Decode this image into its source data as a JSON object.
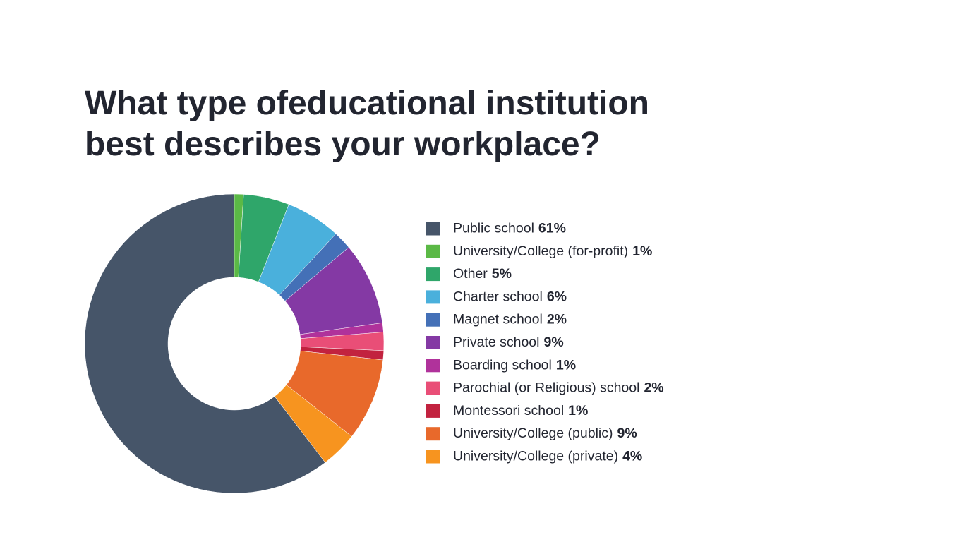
{
  "chart_data": {
    "type": "donut",
    "title": [
      "What type ofeducational institution",
      "best describes your workplace?"
    ],
    "categories": [
      "Public school",
      "University/College (for-profit)",
      "Other",
      "Charter school",
      "Magnet school",
      "Private school",
      "Boarding school",
      "Parochial (or Religious) school",
      "Montessori school",
      "University/College (public)",
      "University/College (private)"
    ],
    "values": [
      61,
      1,
      5,
      6,
      2,
      9,
      1,
      2,
      1,
      9,
      4
    ],
    "value_labels": [
      "61%",
      "1%",
      "5%",
      "6%",
      "2%",
      "9%",
      "1%",
      "2%",
      "1%",
      "9%",
      "4%"
    ],
    "colors": [
      "#465569",
      "#5bb946",
      "#2fa66a",
      "#4ab0dc",
      "#4470b7",
      "#8439a4",
      "#b0329b",
      "#e94e77",
      "#c2223f",
      "#e8692b",
      "#f7941f"
    ]
  }
}
